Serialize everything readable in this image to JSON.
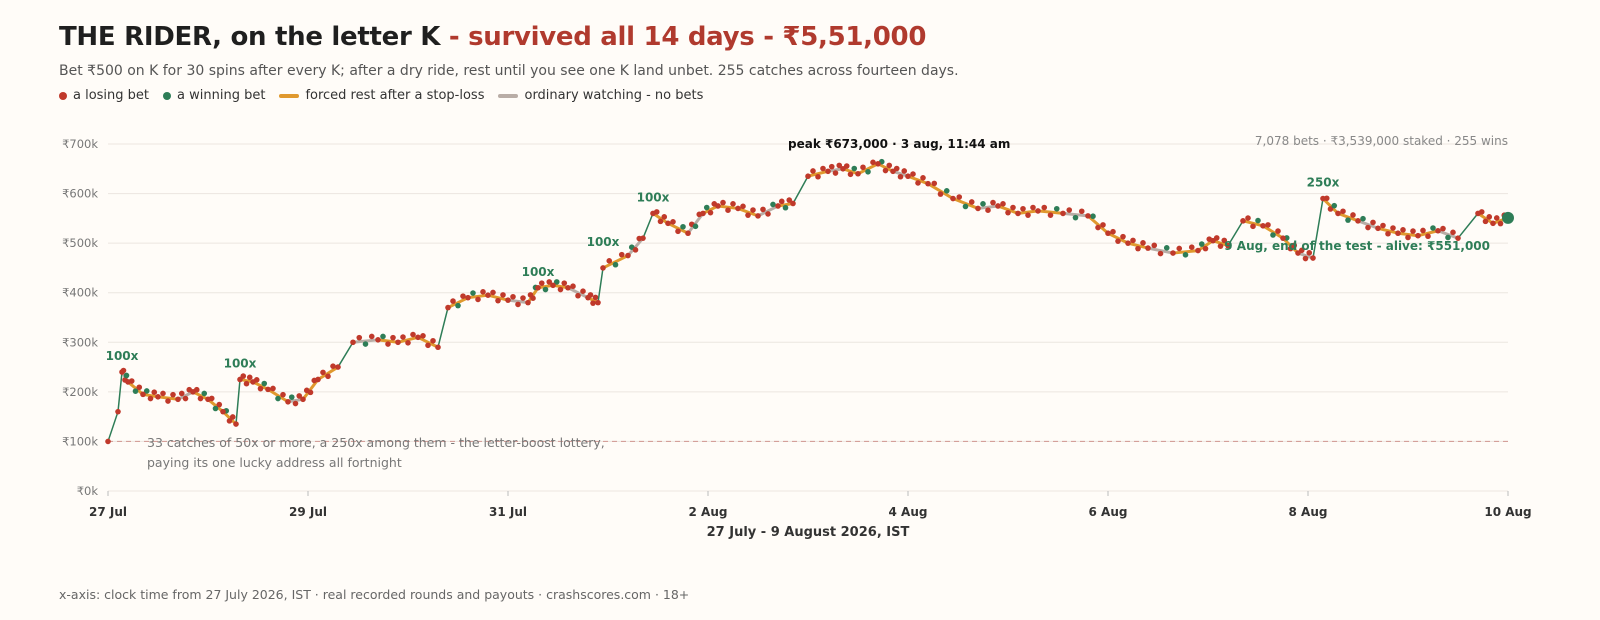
{
  "header": {
    "title_main": "THE RIDER, on the letter K",
    "title_accent": " - survived all 14 days - ₹5,51,000",
    "subtitle": "Bet ₹500 on K for 30 spins after every K; after a dry ride, rest until you see one K land unbet. 255 catches across fourteen days."
  },
  "legend": [
    {
      "label": "a losing bet",
      "color": "#c0392b",
      "shape": "dot"
    },
    {
      "label": "a winning bet",
      "color": "#2e7d57",
      "shape": "dot"
    },
    {
      "label": "forced rest after a stop-loss",
      "color": "#e0992e",
      "shape": "bar"
    },
    {
      "label": "ordinary watching - no bets",
      "color": "#b9ada6",
      "shape": "bar"
    }
  ],
  "footer": "x-axis: clock time from 27 July 2026, IST · real recorded rounds and payouts · crashscores.com · 18+",
  "colors": {
    "loss": "#c0392b",
    "win": "#2e7d57",
    "rest": "#e0992e",
    "watch": "#b9ada6",
    "grid": "#ece6e0",
    "baseline": "#d4a09a"
  },
  "chart_data": {
    "type": "line",
    "xlabel": "27 July - 9 August 2026, IST",
    "ylabel": "",
    "x_ticks": [
      "27 Jul",
      "29 Jul",
      "31 Jul",
      "2 Aug",
      "4 Aug",
      "6 Aug",
      "8 Aug",
      "10 Aug"
    ],
    "x_tick_days": [
      0,
      2,
      4,
      6,
      8,
      10,
      12,
      14
    ],
    "xlim_days": [
      0,
      14
    ],
    "y_ticks": [
      "₹0k",
      "₹100k",
      "₹200k",
      "₹300k",
      "₹400k",
      "₹500k",
      "₹600k",
      "₹700k"
    ],
    "y_tick_values": [
      0,
      100000,
      200000,
      300000,
      400000,
      500000,
      600000,
      700000
    ],
    "ylim": [
      0,
      700000
    ],
    "starting_bankroll": 100000,
    "stats_note": "7,078 bets · ₹3,539,000 staked · 255 wins",
    "series": [
      {
        "points": [
          [
            0.0,
            100000
          ],
          [
            0.1,
            160000
          ],
          [
            0.14,
            240000
          ],
          [
            0.2,
            220000
          ],
          [
            0.35,
            195000
          ],
          [
            0.5,
            190000
          ],
          [
            0.7,
            185000
          ],
          [
            0.85,
            200000
          ],
          [
            1.0,
            185000
          ],
          [
            1.15,
            160000
          ],
          [
            1.28,
            135000
          ],
          [
            1.32,
            225000
          ],
          [
            1.45,
            220000
          ],
          [
            1.6,
            205000
          ],
          [
            1.8,
            180000
          ],
          [
            1.95,
            185000
          ],
          [
            2.1,
            225000
          ],
          [
            2.3,
            250000
          ],
          [
            2.45,
            300000
          ],
          [
            2.7,
            305000
          ],
          [
            2.9,
            300000
          ],
          [
            3.1,
            310000
          ],
          [
            3.3,
            290000
          ],
          [
            3.4,
            370000
          ],
          [
            3.6,
            390000
          ],
          [
            3.8,
            395000
          ],
          [
            4.0,
            385000
          ],
          [
            4.2,
            380000
          ],
          [
            4.3,
            410000
          ],
          [
            4.45,
            415000
          ],
          [
            4.6,
            410000
          ],
          [
            4.8,
            390000
          ],
          [
            4.9,
            380000
          ],
          [
            4.95,
            450000
          ],
          [
            5.2,
            475000
          ],
          [
            5.35,
            510000
          ],
          [
            5.45,
            560000
          ],
          [
            5.6,
            540000
          ],
          [
            5.8,
            520000
          ],
          [
            5.95,
            560000
          ],
          [
            6.1,
            575000
          ],
          [
            6.3,
            570000
          ],
          [
            6.5,
            555000
          ],
          [
            6.7,
            575000
          ],
          [
            6.85,
            580000
          ],
          [
            7.0,
            635000
          ],
          [
            7.2,
            645000
          ],
          [
            7.35,
            650000
          ],
          [
            7.5,
            640000
          ],
          [
            7.7,
            660000
          ],
          [
            7.85,
            645000
          ],
          [
            8.0,
            635000
          ],
          [
            8.2,
            620000
          ],
          [
            8.45,
            590000
          ],
          [
            8.7,
            570000
          ],
          [
            8.9,
            575000
          ],
          [
            9.1,
            560000
          ],
          [
            9.3,
            565000
          ],
          [
            9.55,
            560000
          ],
          [
            9.8,
            555000
          ],
          [
            10.0,
            520000
          ],
          [
            10.2,
            500000
          ],
          [
            10.4,
            490000
          ],
          [
            10.65,
            480000
          ],
          [
            10.9,
            485000
          ],
          [
            11.05,
            505000
          ],
          [
            11.2,
            495000
          ],
          [
            11.35,
            545000
          ],
          [
            11.55,
            535000
          ],
          [
            11.75,
            510000
          ],
          [
            11.9,
            480000
          ],
          [
            12.05,
            470000
          ],
          [
            12.15,
            590000
          ],
          [
            12.3,
            560000
          ],
          [
            12.5,
            545000
          ],
          [
            12.7,
            530000
          ],
          [
            12.9,
            520000
          ],
          [
            13.1,
            515000
          ],
          [
            13.3,
            525000
          ],
          [
            13.5,
            510000
          ],
          [
            13.7,
            560000
          ],
          [
            13.85,
            540000
          ],
          [
            14.0,
            551000
          ]
        ]
      }
    ],
    "annotations": [
      {
        "text": "100x",
        "x": 0.14,
        "y": 240000
      },
      {
        "text": "100x",
        "x": 1.32,
        "y": 225000
      },
      {
        "text": "100x",
        "x": 4.3,
        "y": 410000
      },
      {
        "text": "100x",
        "x": 4.95,
        "y": 470000
      },
      {
        "text": "100x",
        "x": 5.45,
        "y": 560000
      },
      {
        "text": "250x",
        "x": 12.15,
        "y": 590000
      }
    ],
    "peak": {
      "text": "peak ₹673,000 · 3 aug, 11:44 am",
      "x": 7.7,
      "y": 673000
    },
    "end_label": "9 Aug, end of the test - alive: ₹551,000",
    "baseline_note": [
      "33 catches of 50x or more, a 250x among them - the letter-boost lottery,",
      "paying its one lucky address all fortnight"
    ]
  }
}
